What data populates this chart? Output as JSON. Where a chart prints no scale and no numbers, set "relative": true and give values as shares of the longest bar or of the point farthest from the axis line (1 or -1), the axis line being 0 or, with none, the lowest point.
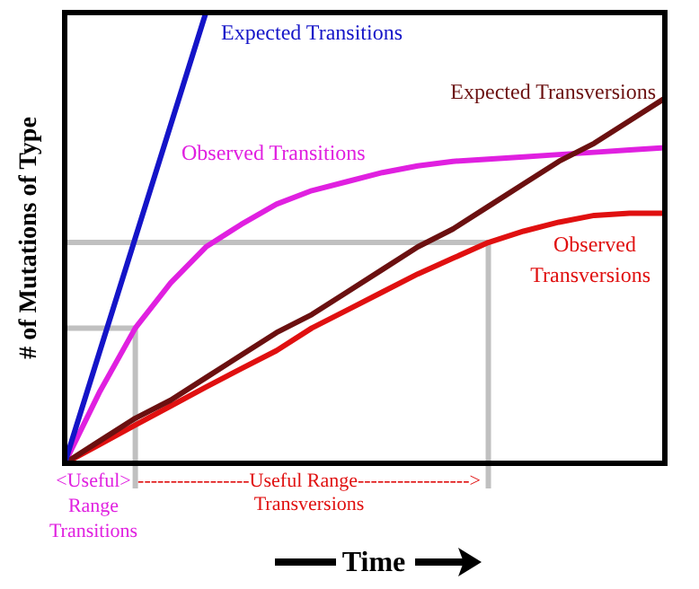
{
  "chart_data": {
    "type": "line",
    "relative": true,
    "xlabel": "Time",
    "ylabel": "# of Mutations of Type",
    "tick_labels": false,
    "categories": [
      null,
      null,
      null,
      null,
      null,
      null,
      null,
      null,
      null,
      null,
      null,
      null,
      null,
      null,
      null,
      null,
      null,
      null
    ],
    "series": [
      {
        "name": "Expected Transitions",
        "color": "#1414c8",
        "values": [
          0,
          0.25,
          0.5,
          0.75,
          1,
          null,
          null,
          null,
          null,
          null,
          null,
          null,
          null,
          null,
          null,
          null,
          null,
          null
        ]
      },
      {
        "name": "Expected Transversions",
        "color": "#6b1010",
        "values": [
          0,
          0.05,
          0.1,
          0.14,
          0.19,
          0.24,
          0.29,
          0.33,
          0.38,
          0.43,
          0.48,
          0.52,
          0.57,
          0.62,
          0.67,
          0.71,
          0.76,
          0.81
        ]
      },
      {
        "name": "Observed Transitions",
        "color": "#e020e0",
        "values": [
          0,
          0.16,
          0.3,
          0.4,
          0.48,
          0.53,
          0.575,
          0.605,
          0.625,
          0.645,
          0.66,
          0.67,
          0.675,
          0.68,
          0.685,
          0.69,
          0.695,
          0.7
        ]
      },
      {
        "name": "Observed Transversions",
        "color": "#e01010",
        "values": [
          0,
          0.042,
          0.085,
          0.127,
          0.169,
          0.21,
          0.25,
          0.3,
          0.34,
          0.38,
          0.42,
          0.455,
          0.49,
          0.515,
          0.535,
          0.55,
          0.555,
          0.555
        ]
      },
      {
        "color": "#c0c0c0",
        "values": [
          0.3,
          0.3,
          0.3,
          null,
          null,
          null,
          null,
          null,
          null,
          null,
          null,
          null,
          null,
          null,
          null,
          null,
          null,
          null
        ]
      },
      {
        "color": "#c0c0c0",
        "values": [
          0.49,
          0.49,
          0.49,
          0.49,
          0.49,
          0.49,
          0.49,
          0.49,
          0.49,
          0.49,
          0.49,
          0.49,
          0.49,
          null,
          null,
          null,
          null,
          null
        ]
      }
    ],
    "annotations": [
      "<Useful>",
      "Range",
      "Transitions",
      "-----------------Useful Range----------------->",
      "Transversions"
    ],
    "marker": "none",
    "line_style": "solid"
  }
}
